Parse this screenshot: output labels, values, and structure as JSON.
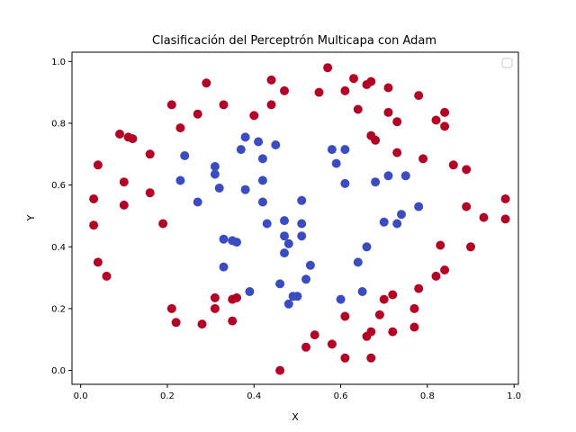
{
  "chart_data": {
    "type": "scatter",
    "title": "Clasificación del Perceptrón Multicapa con Adam",
    "xlabel": "X",
    "ylabel": "Y",
    "xlim": [
      -0.02,
      1.01
    ],
    "ylim": [
      -0.045,
      1.03
    ],
    "xticks": [
      "0.0",
      "0.2",
      "0.4",
      "0.6",
      "0.8",
      "1.0"
    ],
    "yticks": [
      "0.0",
      "0.2",
      "0.4",
      "0.6",
      "0.8",
      "1.0"
    ],
    "legend": "top-right",
    "grid": false,
    "colors": {
      "class_0": "#3b4cc0",
      "class_1": "#b40426"
    },
    "series": [
      {
        "class": 1,
        "points": [
          [
            0.57,
            0.98
          ],
          [
            0.63,
            0.945
          ],
          [
            0.67,
            0.935
          ],
          [
            0.44,
            0.94
          ],
          [
            0.29,
            0.93
          ],
          [
            0.71,
            0.915
          ],
          [
            0.66,
            0.925
          ],
          [
            0.61,
            0.905
          ],
          [
            0.47,
            0.905
          ],
          [
            0.55,
            0.9
          ],
          [
            0.78,
            0.89
          ],
          [
            0.21,
            0.86
          ],
          [
            0.33,
            0.86
          ],
          [
            0.44,
            0.86
          ],
          [
            0.64,
            0.845
          ],
          [
            0.71,
            0.835
          ],
          [
            0.84,
            0.835
          ],
          [
            0.27,
            0.83
          ],
          [
            0.4,
            0.825
          ],
          [
            0.82,
            0.81
          ],
          [
            0.73,
            0.805
          ],
          [
            0.84,
            0.79
          ],
          [
            0.23,
            0.785
          ],
          [
            0.09,
            0.765
          ],
          [
            0.11,
            0.755
          ],
          [
            0.12,
            0.75
          ],
          [
            0.67,
            0.76
          ],
          [
            0.68,
            0.745
          ],
          [
            0.73,
            0.705
          ],
          [
            0.16,
            0.7
          ],
          [
            0.79,
            0.685
          ],
          [
            0.04,
            0.665
          ],
          [
            0.86,
            0.665
          ],
          [
            0.89,
            0.65
          ],
          [
            0.1,
            0.61
          ],
          [
            0.16,
            0.575
          ],
          [
            0.03,
            0.555
          ],
          [
            0.98,
            0.555
          ],
          [
            0.1,
            0.535
          ],
          [
            0.89,
            0.53
          ],
          [
            0.93,
            0.495
          ],
          [
            0.98,
            0.49
          ],
          [
            0.19,
            0.475
          ],
          [
            0.03,
            0.47
          ],
          [
            0.83,
            0.405
          ],
          [
            0.9,
            0.4
          ],
          [
            0.04,
            0.35
          ],
          [
            0.84,
            0.325
          ],
          [
            0.06,
            0.305
          ],
          [
            0.82,
            0.305
          ],
          [
            0.78,
            0.265
          ],
          [
            0.72,
            0.245
          ],
          [
            0.31,
            0.235
          ],
          [
            0.35,
            0.23
          ],
          [
            0.36,
            0.235
          ],
          [
            0.7,
            0.23
          ],
          [
            0.31,
            0.2
          ],
          [
            0.21,
            0.2
          ],
          [
            0.77,
            0.2
          ],
          [
            0.61,
            0.175
          ],
          [
            0.69,
            0.18
          ],
          [
            0.35,
            0.16
          ],
          [
            0.22,
            0.155
          ],
          [
            0.28,
            0.15
          ],
          [
            0.77,
            0.14
          ],
          [
            0.72,
            0.125
          ],
          [
            0.67,
            0.125
          ],
          [
            0.54,
            0.115
          ],
          [
            0.66,
            0.11
          ],
          [
            0.58,
            0.085
          ],
          [
            0.52,
            0.075
          ],
          [
            0.61,
            0.04
          ],
          [
            0.67,
            0.04
          ],
          [
            0.46,
            0.0
          ]
        ]
      },
      {
        "class": 0,
        "points": [
          [
            0.38,
            0.755
          ],
          [
            0.41,
            0.74
          ],
          [
            0.45,
            0.73
          ],
          [
            0.37,
            0.715
          ],
          [
            0.58,
            0.715
          ],
          [
            0.61,
            0.715
          ],
          [
            0.24,
            0.695
          ],
          [
            0.42,
            0.685
          ],
          [
            0.59,
            0.67
          ],
          [
            0.31,
            0.66
          ],
          [
            0.31,
            0.635
          ],
          [
            0.71,
            0.63
          ],
          [
            0.75,
            0.63
          ],
          [
            0.23,
            0.615
          ],
          [
            0.42,
            0.615
          ],
          [
            0.68,
            0.61
          ],
          [
            0.61,
            0.605
          ],
          [
            0.32,
            0.59
          ],
          [
            0.38,
            0.585
          ],
          [
            0.27,
            0.545
          ],
          [
            0.42,
            0.545
          ],
          [
            0.51,
            0.55
          ],
          [
            0.78,
            0.53
          ],
          [
            0.74,
            0.505
          ],
          [
            0.47,
            0.485
          ],
          [
            0.43,
            0.475
          ],
          [
            0.51,
            0.475
          ],
          [
            0.7,
            0.48
          ],
          [
            0.73,
            0.475
          ],
          [
            0.47,
            0.435
          ],
          [
            0.51,
            0.435
          ],
          [
            0.33,
            0.425
          ],
          [
            0.35,
            0.42
          ],
          [
            0.36,
            0.415
          ],
          [
            0.48,
            0.41
          ],
          [
            0.66,
            0.4
          ],
          [
            0.47,
            0.38
          ],
          [
            0.64,
            0.35
          ],
          [
            0.33,
            0.335
          ],
          [
            0.53,
            0.34
          ],
          [
            0.52,
            0.295
          ],
          [
            0.46,
            0.28
          ],
          [
            0.39,
            0.255
          ],
          [
            0.65,
            0.255
          ],
          [
            0.49,
            0.24
          ],
          [
            0.5,
            0.24
          ],
          [
            0.6,
            0.23
          ],
          [
            0.48,
            0.215
          ]
        ]
      }
    ]
  }
}
